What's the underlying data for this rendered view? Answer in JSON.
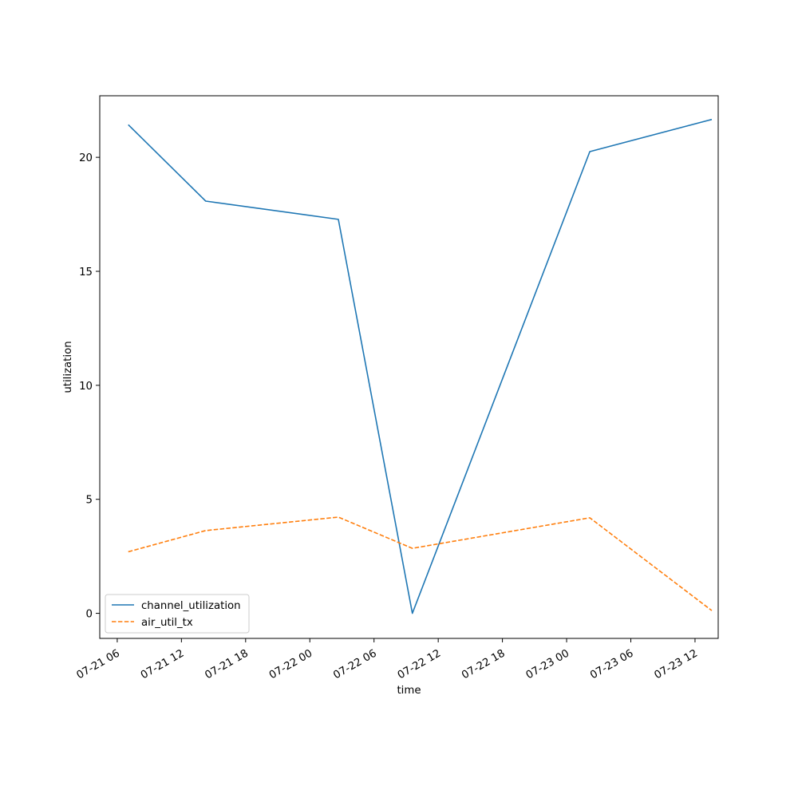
{
  "chart_data": {
    "type": "line",
    "title": "",
    "xlabel": "time",
    "ylabel": "utilization",
    "x_tick_labels": [
      "07-21 06",
      "07-21 12",
      "07-21 18",
      "07-22 00",
      "07-22 06",
      "07-22 12",
      "07-22 18",
      "07-23 00",
      "07-23 06",
      "07-23 12"
    ],
    "y_tick_labels": [
      "0",
      "5",
      "10",
      "15",
      "20"
    ],
    "ylim": [
      -1.1,
      22.7
    ],
    "xlim": [
      "2024-07-21T04:22",
      "2024-07-23T14:10"
    ],
    "grid": false,
    "legend_position": "lower-left",
    "series": [
      {
        "name": "channel_utilization",
        "color": "#1f77b4",
        "line_style": "solid",
        "points": [
          {
            "x": "2024-07-21T07:02",
            "y": 21.43
          },
          {
            "x": "2024-07-21T14:16",
            "y": 18.08
          },
          {
            "x": "2024-07-22T02:40",
            "y": 17.28
          },
          {
            "x": "2024-07-22T09:35",
            "y": 0.0
          },
          {
            "x": "2024-07-23T02:10",
            "y": 20.25
          },
          {
            "x": "2024-07-23T13:34",
            "y": 21.66
          }
        ]
      },
      {
        "name": "air_util_tx",
        "color": "#ff7f0e",
        "line_style": "dashed",
        "points": [
          {
            "x": "2024-07-21T07:02",
            "y": 2.7
          },
          {
            "x": "2024-07-21T14:16",
            "y": 3.63
          },
          {
            "x": "2024-07-22T02:40",
            "y": 4.22
          },
          {
            "x": "2024-07-22T09:35",
            "y": 2.85
          },
          {
            "x": "2024-07-23T02:10",
            "y": 4.19
          },
          {
            "x": "2024-07-23T13:34",
            "y": 0.12
          }
        ]
      }
    ]
  }
}
